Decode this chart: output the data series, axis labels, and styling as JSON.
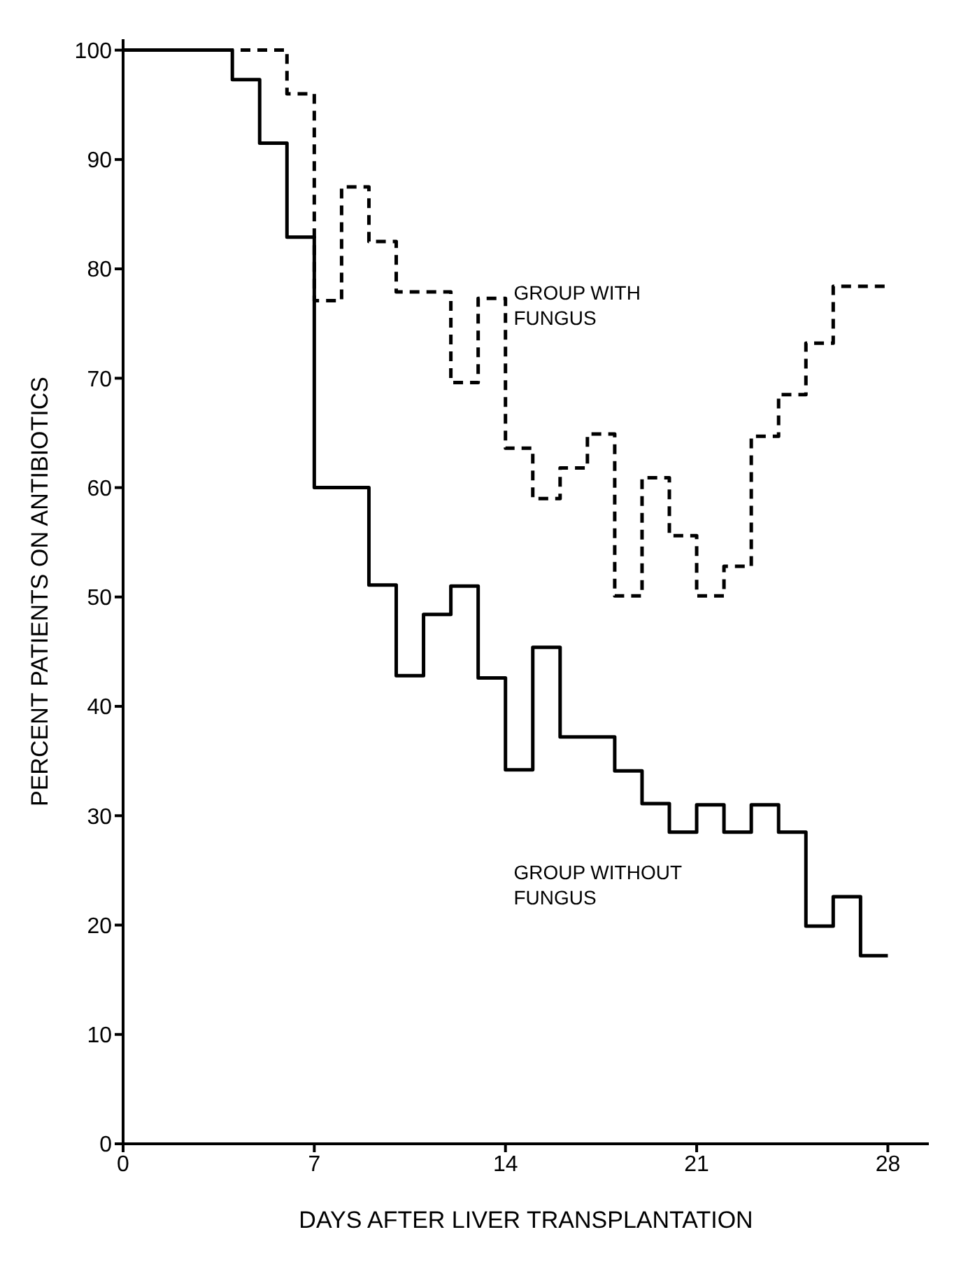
{
  "chart_data": {
    "type": "step",
    "xlabel": "DAYS AFTER LIVER TRANSPLANTATION",
    "ylabel": "PERCENT PATIENTS ON ANTIBIOTICS",
    "xlim": [
      0,
      29.5
    ],
    "xticks": [
      0,
      7,
      14,
      21,
      28
    ],
    "ylim": [
      0,
      101
    ],
    "yticks": [
      0,
      10,
      20,
      30,
      40,
      50,
      60,
      70,
      80,
      90,
      100
    ],
    "grid": false,
    "legend": false,
    "marker": "none",
    "series": [
      {
        "name": "GROUP WITH FUNGUS",
        "color": "#000000",
        "line_style": "dashed",
        "x": [
          0,
          6,
          7,
          8,
          9,
          10,
          12,
          13,
          14,
          15,
          16,
          17,
          18,
          19,
          20,
          21,
          22,
          23,
          24,
          25,
          26,
          28
        ],
        "values": [
          100,
          96,
          77.1,
          87.5,
          82.5,
          77.9,
          69.6,
          77.3,
          63.6,
          59,
          61.8,
          64.9,
          50.1,
          60.9,
          55.6,
          50.1,
          52.8,
          64.7,
          68.5,
          73.2,
          78.4,
          78.4
        ]
      },
      {
        "name": "GROUP WITHOUT FUNGUS",
        "color": "#000000",
        "line_style": "solid",
        "x": [
          0,
          4,
          5,
          6,
          7,
          9,
          10,
          11,
          12,
          13,
          14,
          15,
          16,
          18,
          19,
          20,
          21,
          22,
          23,
          24,
          25,
          26,
          27,
          28
        ],
        "values": [
          100,
          97.3,
          91.5,
          82.9,
          60,
          51.1,
          42.8,
          48.4,
          51,
          42.6,
          34.2,
          45.4,
          37.2,
          34.1,
          31.1,
          28.5,
          31,
          28.5,
          31,
          28.5,
          19.9,
          22.6,
          17.2,
          17.2
        ]
      }
    ]
  }
}
